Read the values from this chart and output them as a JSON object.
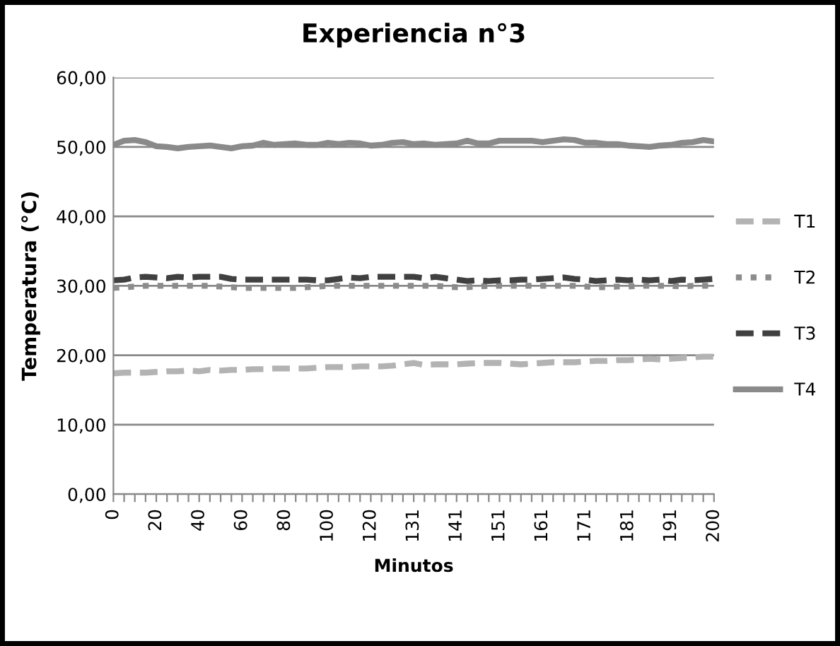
{
  "chart_data": {
    "type": "line",
    "title": "Experiencia n°3",
    "xlabel": "Minutos",
    "ylabel": "Temperatura (°C)",
    "categories": [
      "0",
      null,
      null,
      null,
      "20",
      null,
      null,
      null,
      "40",
      null,
      null,
      null,
      "60",
      null,
      null,
      null,
      "80",
      null,
      null,
      null,
      "100",
      null,
      null,
      null,
      "120",
      null,
      null,
      null,
      "131",
      null,
      null,
      null,
      "141",
      null,
      null,
      null,
      "151",
      null,
      null,
      null,
      "161",
      null,
      null,
      null,
      "171",
      null,
      null,
      null,
      "181",
      null,
      null,
      null,
      "191",
      null,
      null,
      null,
      "200"
    ],
    "series": [
      {
        "name": "T1",
        "color": "#b3b3b3",
        "line_style": "dashed",
        "values": [
          17.4,
          17.5,
          17.5,
          17.5,
          17.6,
          17.7,
          17.7,
          17.8,
          17.7,
          17.9,
          17.8,
          17.9,
          17.9,
          18.0,
          18.0,
          18.1,
          18.1,
          18.1,
          18.1,
          18.2,
          18.3,
          18.3,
          18.3,
          18.4,
          18.4,
          18.4,
          18.5,
          18.7,
          18.9,
          18.6,
          18.7,
          18.7,
          18.7,
          18.8,
          18.9,
          18.9,
          18.9,
          18.8,
          18.7,
          18.8,
          18.9,
          19.0,
          19.0,
          19.0,
          19.1,
          19.2,
          19.2,
          19.3,
          19.3,
          19.4,
          19.5,
          19.4,
          19.5,
          19.6,
          19.7,
          19.8,
          19.8
        ]
      },
      {
        "name": "T2",
        "color": "#8c8c8c",
        "line_style": "dotted",
        "values": [
          29.7,
          29.8,
          29.9,
          30.0,
          30.0,
          30.0,
          30.0,
          30.0,
          30.0,
          30.0,
          29.9,
          29.8,
          29.7,
          29.7,
          29.7,
          29.7,
          29.7,
          29.7,
          29.8,
          29.9,
          30.0,
          30.0,
          30.0,
          30.0,
          30.0,
          30.0,
          30.0,
          30.0,
          30.0,
          30.0,
          30.0,
          29.9,
          29.8,
          29.8,
          29.9,
          30.0,
          30.0,
          30.0,
          30.0,
          30.0,
          30.0,
          30.0,
          30.0,
          30.0,
          29.9,
          29.8,
          29.8,
          29.9,
          29.9,
          30.0,
          30.0,
          30.0,
          30.0,
          29.9,
          30.0,
          30.0,
          30.0
        ]
      },
      {
        "name": "T3",
        "color": "#404040",
        "line_style": "dashed",
        "values": [
          30.8,
          30.9,
          31.2,
          31.3,
          31.2,
          31.1,
          31.3,
          31.2,
          31.3,
          31.3,
          31.3,
          31.0,
          30.9,
          30.9,
          30.9,
          30.9,
          30.9,
          30.9,
          30.9,
          30.8,
          30.8,
          31.0,
          31.2,
          31.1,
          31.3,
          31.3,
          31.3,
          31.3,
          31.3,
          31.1,
          31.3,
          31.1,
          30.9,
          30.7,
          30.8,
          30.7,
          30.8,
          30.8,
          30.9,
          30.9,
          31.0,
          31.1,
          31.2,
          31.0,
          30.9,
          30.7,
          30.8,
          30.9,
          30.8,
          30.9,
          30.8,
          30.9,
          30.7,
          30.9,
          30.8,
          30.9,
          31.0
        ]
      },
      {
        "name": "T4",
        "color": "#8a8a8a",
        "line_style": "solid",
        "values": [
          50.3,
          50.9,
          51.0,
          50.7,
          50.1,
          50.0,
          49.8,
          50.0,
          50.1,
          50.2,
          50.0,
          49.8,
          50.1,
          50.2,
          50.6,
          50.3,
          50.4,
          50.5,
          50.3,
          50.3,
          50.6,
          50.4,
          50.6,
          50.5,
          50.2,
          50.3,
          50.6,
          50.7,
          50.4,
          50.5,
          50.3,
          50.4,
          50.5,
          50.9,
          50.5,
          50.5,
          50.9,
          50.9,
          50.9,
          50.9,
          50.7,
          50.9,
          51.1,
          51.0,
          50.6,
          50.6,
          50.4,
          50.4,
          50.2,
          50.1,
          50.0,
          50.2,
          50.3,
          50.6,
          50.7,
          51.0,
          50.8
        ]
      }
    ],
    "ylim": [
      0,
      60
    ],
    "yticks": [
      {
        "value": 0,
        "label": "0,00"
      },
      {
        "value": 10,
        "label": "10,00"
      },
      {
        "value": 20,
        "label": "20,00"
      },
      {
        "value": 30,
        "label": "30,00"
      },
      {
        "value": 40,
        "label": "40,00"
      },
      {
        "value": 50,
        "label": "50,00"
      },
      {
        "value": 60,
        "label": "60,00"
      }
    ],
    "grid": "y",
    "legend": "right",
    "marker": "none"
  }
}
